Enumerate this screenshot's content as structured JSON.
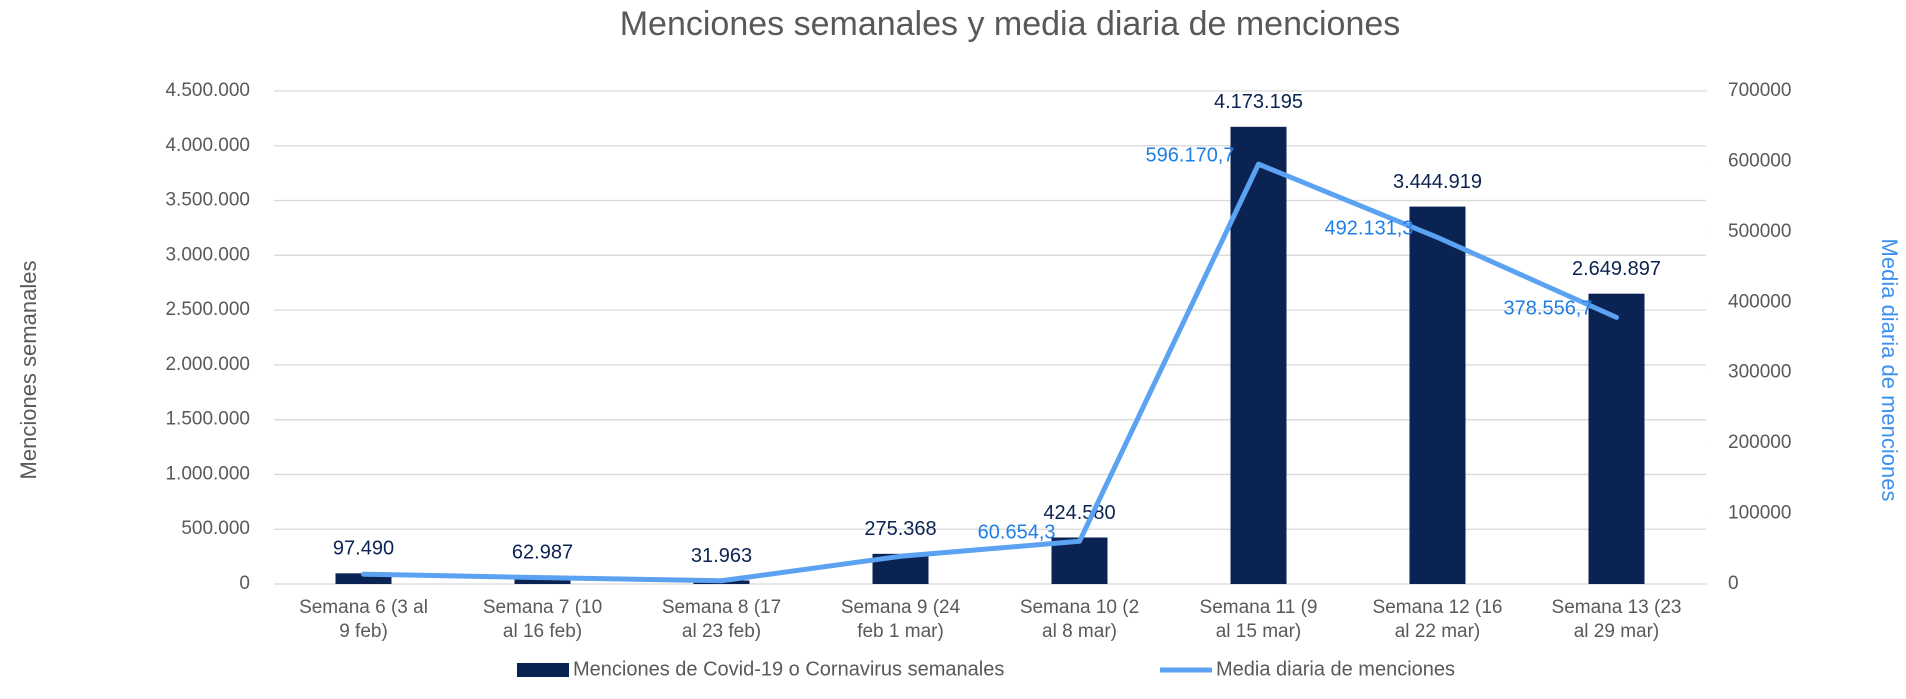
{
  "chart_data": {
    "type": "combo",
    "title": "Menciones semanales y media diaria de menciones",
    "ylabel": "Menciones semanales",
    "y2label": "Media diaria de menciones",
    "categories": [
      "Semana 6 (3 al 9 feb)",
      "Semana 7 (10 al 16 feb)",
      "Semana 8 (17 al 23 feb)",
      "Semana 9 (24 feb 1 mar)",
      "Semana 10 (2 al 8 mar)",
      "Semana 11 (9 al 15 mar)",
      "Semana 12 (16 al 22 mar)",
      "Semana 13 (23 al 29 mar)"
    ],
    "series": [
      {
        "name": "Menciones de Covid-19 o Cornavirus semanales",
        "type": "bar",
        "color": "#0b2352",
        "values": [
          97490,
          62987,
          31963,
          275368,
          424580,
          4173195,
          3444919,
          2649897
        ],
        "value_labels": [
          "97.490",
          "62.987",
          "31.963",
          "275.368",
          "424.580",
          "4.173.195",
          "3.444.919",
          "2.649.897"
        ]
      },
      {
        "name": "Media diaria de menciones",
        "type": "line",
        "axis": "y2",
        "color": "#5ba3f2",
        "values": [
          13927.1,
          8998.1,
          4566.1,
          39338.3,
          60654.3,
          596170.7,
          492131.3,
          378556.7
        ],
        "value_labels": [
          null,
          null,
          null,
          null,
          "60.654,3",
          "596.170,7",
          "492.131,3",
          "378.556,7"
        ]
      }
    ],
    "ylim": [
      0,
      4500000
    ],
    "yticks": [
      0,
      {
        "value": 500000,
        "label": "500.000"
      },
      {
        "value": 1000000,
        "label": "1.000.000"
      },
      {
        "value": 1500000,
        "label": "1.500.000"
      },
      {
        "value": 2000000,
        "label": "2.000.000"
      },
      {
        "value": 2500000,
        "label": "2.500.000"
      },
      {
        "value": 3000000,
        "label": "3.000.000"
      },
      {
        "value": 3500000,
        "label": "3.500.000"
      },
      {
        "value": 4000000,
        "label": "4.000.000"
      },
      {
        "value": 4500000,
        "label": "4.500.000"
      }
    ],
    "y2lim": [
      0,
      700000
    ],
    "y2ticks": [
      0,
      100000,
      200000,
      300000,
      400000,
      500000,
      600000,
      700000
    ],
    "grid": true,
    "legend": "bottom"
  }
}
